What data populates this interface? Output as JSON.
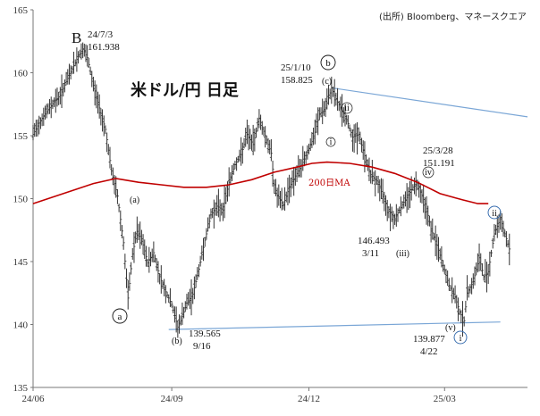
{
  "title": "米ドル/円 日足",
  "source": "(出所) Bloomberg、マネースクエア",
  "colors": {
    "price": "#333333",
    "ma": "#c00000",
    "trendline": "#7aa6d6",
    "axis": "#777777"
  },
  "chart_data": {
    "type": "ohlc-line",
    "title": "米ドル/円 日足",
    "ylim": [
      135,
      165
    ],
    "yticks": [
      "135",
      "140",
      "145",
      "150",
      "155",
      "160",
      "165"
    ],
    "xticks": [
      "24/06",
      "24/09",
      "24/12",
      "25/03"
    ],
    "x_range_days": [
      0,
      328
    ],
    "series": [
      {
        "name": "price",
        "points": [
          [
            0,
            155.1
          ],
          [
            4,
            156.0
          ],
          [
            9,
            156.9
          ],
          [
            14,
            157.7
          ],
          [
            18,
            158.2
          ],
          [
            22,
            159.3
          ],
          [
            26,
            160.3
          ],
          [
            30,
            161.3
          ],
          [
            33,
            161.9
          ],
          [
            36,
            161.2
          ],
          [
            40,
            159.0
          ],
          [
            44,
            157.2
          ],
          [
            48,
            155.5
          ],
          [
            52,
            152.2
          ],
          [
            56,
            150.2
          ],
          [
            60,
            146.5
          ],
          [
            63,
            142.1
          ],
          [
            66,
            145.6
          ],
          [
            69,
            147.4
          ],
          [
            72,
            146.8
          ],
          [
            76,
            144.9
          ],
          [
            80,
            145.7
          ],
          [
            84,
            143.8
          ],
          [
            88,
            142.6
          ],
          [
            92,
            141.6
          ],
          [
            96,
            139.8
          ],
          [
            98,
            140.3
          ],
          [
            102,
            141.7
          ],
          [
            106,
            142.4
          ],
          [
            110,
            144.4
          ],
          [
            114,
            146.7
          ],
          [
            118,
            148.7
          ],
          [
            122,
            149.4
          ],
          [
            126,
            149.1
          ],
          [
            130,
            151.3
          ],
          [
            134,
            152.7
          ],
          [
            138,
            153.5
          ],
          [
            142,
            155.1
          ],
          [
            146,
            154.3
          ],
          [
            150,
            156.4
          ],
          [
            154,
            155.0
          ],
          [
            158,
            153.6
          ],
          [
            160,
            151.1
          ],
          [
            162,
            150.2
          ],
          [
            166,
            149.5
          ],
          [
            170,
            150.9
          ],
          [
            174,
            151.8
          ],
          [
            178,
            152.6
          ],
          [
            182,
            153.7
          ],
          [
            186,
            154.8
          ],
          [
            190,
            156.7
          ],
          [
            194,
            157.2
          ],
          [
            196,
            158.0
          ],
          [
            198,
            158.8
          ],
          [
            201,
            157.9
          ],
          [
            204,
            157.2
          ],
          [
            208,
            156.3
          ],
          [
            212,
            154.9
          ],
          [
            216,
            155.1
          ],
          [
            220,
            153.4
          ],
          [
            224,
            151.9
          ],
          [
            228,
            151.4
          ],
          [
            232,
            150.3
          ],
          [
            236,
            149.0
          ],
          [
            240,
            148.4
          ],
          [
            244,
            149.3
          ],
          [
            248,
            150.1
          ],
          [
            252,
            150.9
          ],
          [
            255,
            151.2
          ],
          [
            258,
            150.3
          ],
          [
            261,
            149.2
          ],
          [
            264,
            147.6
          ],
          [
            268,
            146.3
          ],
          [
            272,
            144.7
          ],
          [
            276,
            143.1
          ],
          [
            280,
            142.2
          ],
          [
            283,
            141.0
          ],
          [
            286,
            140.3
          ],
          [
            288,
            142.5
          ],
          [
            292,
            143.4
          ],
          [
            296,
            145.3
          ],
          [
            299,
            143.8
          ],
          [
            302,
            144.2
          ],
          [
            306,
            147.2
          ],
          [
            310,
            148.4
          ],
          [
            313,
            147.2
          ],
          [
            316,
            146.0
          ]
        ]
      },
      {
        "name": "200日MA",
        "points": [
          [
            0,
            149.6
          ],
          [
            20,
            150.4
          ],
          [
            40,
            151.2
          ],
          [
            55,
            151.6
          ],
          [
            70,
            151.3
          ],
          [
            85,
            151.1
          ],
          [
            100,
            150.9
          ],
          [
            115,
            150.9
          ],
          [
            130,
            151.1
          ],
          [
            145,
            151.5
          ],
          [
            160,
            152.1
          ],
          [
            175,
            152.5
          ],
          [
            185,
            152.8
          ],
          [
            195,
            152.9
          ],
          [
            210,
            152.8
          ],
          [
            225,
            152.5
          ],
          [
            240,
            152.0
          ],
          [
            255,
            151.3
          ],
          [
            270,
            150.4
          ],
          [
            285,
            149.9
          ],
          [
            295,
            149.6
          ],
          [
            302,
            149.6
          ]
        ]
      }
    ],
    "trendlines": [
      {
        "from": [
          90,
          139.6
        ],
        "to": [
          310,
          140.2
        ]
      },
      {
        "from": [
          198,
          158.8
        ],
        "to": [
          328,
          156.5
        ]
      }
    ],
    "annotations": {
      "B": "B",
      "peak_date": "24/7/3",
      "peak_value": "161.938",
      "a_circle": "a",
      "a_paren": "(a)",
      "b_paren": "(b)",
      "low1_value": "139.565",
      "low1_date": "9/16",
      "b_circle": "b",
      "c_paren": "(c)",
      "peak2_date": "25/1/10",
      "peak2_value": "158.825",
      "roman_i": "i",
      "roman_ii": "ii",
      "roman_iii": "(iii)",
      "roman_iv": "iv",
      "roman_v": "(v)",
      "low2_value": "146.493",
      "low2_date": "3/11",
      "high3_date": "25/3/28",
      "high3_value": "151.191",
      "low3_value": "139.877",
      "low3_date": "4/22",
      "i_circle": "i",
      "ii_circle": "ii",
      "ma_label": "200日MA"
    }
  }
}
